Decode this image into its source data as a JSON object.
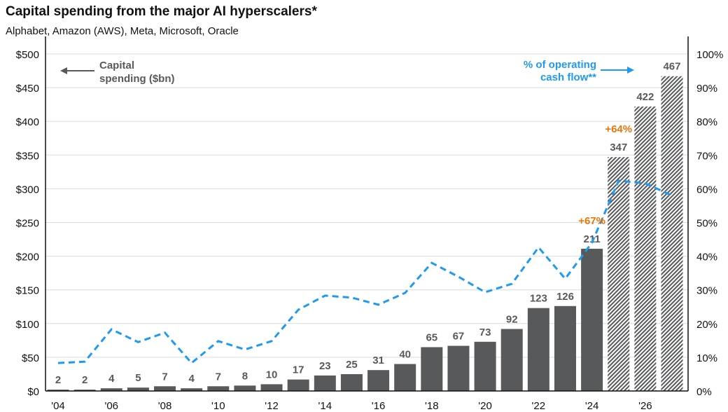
{
  "chart_data": {
    "type": "bar+line",
    "title": "Capital spending from the major AI hyperscalers*",
    "subtitle": "Alphabet, Amazon (AWS), Meta, Microsoft, Oracle",
    "years": [
      2004,
      2005,
      2006,
      2007,
      2008,
      2009,
      2010,
      2011,
      2012,
      2013,
      2014,
      2015,
      2016,
      2017,
      2018,
      2019,
      2020,
      2021,
      2022,
      2023,
      2024,
      2025,
      2026,
      2027
    ],
    "x_tick_labels": [
      "'04",
      "'06",
      "'08",
      "'10",
      "'12",
      "'14",
      "'16",
      "'18",
      "'20",
      "'22",
      "'24",
      "'26"
    ],
    "series": [
      {
        "name": "Capital spending ($bn)",
        "type": "bar",
        "axis": "left",
        "values": [
          2,
          2,
          4,
          5,
          7,
          4,
          7,
          8,
          10,
          17,
          23,
          25,
          31,
          40,
          65,
          67,
          73,
          92,
          123,
          126,
          211,
          347,
          422,
          467
        ],
        "forecast_from_index": 21,
        "color": "#58595B"
      },
      {
        "name": "% of operating cash flow**",
        "type": "line",
        "axis": "right",
        "style": "dashed",
        "color": "#1E9BF0",
        "values": [
          8.3,
          8.7,
          18.3,
          14.5,
          17.3,
          8.3,
          14.8,
          12.3,
          14.8,
          24.1,
          28.3,
          27.7,
          25.6,
          29.1,
          38,
          33.9,
          29.3,
          31.8,
          42.6,
          33.3,
          44,
          62.4,
          61.6,
          58
        ]
      }
    ],
    "left_axis": {
      "range": [
        0,
        500
      ],
      "ticks": [
        "$0",
        "$50",
        "$100",
        "$150",
        "$200",
        "$250",
        "$300",
        "$350",
        "$400",
        "$450",
        "$500"
      ]
    },
    "right_axis": {
      "range": [
        0,
        100
      ],
      "ticks": [
        "0%",
        "10%",
        "20%",
        "30%",
        "40%",
        "50%",
        "60%",
        "70%",
        "80%",
        "90%",
        "100%"
      ]
    },
    "annotations": [
      {
        "text": "+67%",
        "year": 2024,
        "color": "#E8760A"
      },
      {
        "text": "+64%",
        "year": 2025,
        "color": "#E8760A"
      }
    ],
    "legend_left": {
      "line1": "Capital",
      "line2": "spending ($bn)"
    },
    "legend_right": {
      "line1": "% of operating",
      "line2": "cash flow**"
    },
    "grid": true
  }
}
